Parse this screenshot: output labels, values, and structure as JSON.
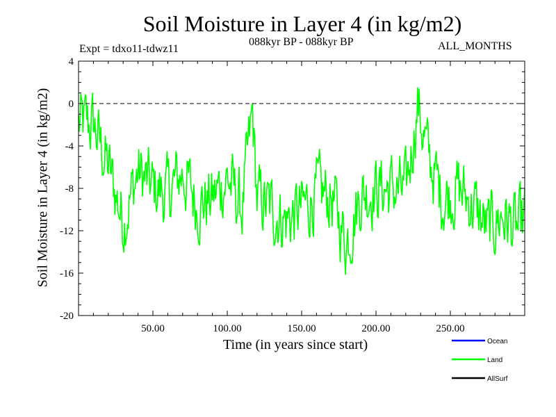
{
  "chart_data": {
    "type": "line",
    "title": "Soil Moisture in Layer 4 (in kg/m2)",
    "subtitle_left": "Expt = tdxo11-tdwz11",
    "subtitle_center": "088kyr BP - 088kyr BP",
    "subtitle_right": "ALL_MONTHS",
    "xlabel": "Time (in years since start)",
    "ylabel": "Soil Moisture in Layer 4 (in kg/m2)",
    "xlim": [
      0,
      300
    ],
    "ylim": [
      -20,
      4
    ],
    "x_ticks": [
      50,
      100,
      150,
      200,
      250
    ],
    "x_tick_labels": [
      "50.00",
      "100.00",
      "150.00",
      "200.00",
      "250.00"
    ],
    "y_ticks": [
      4,
      0,
      -4,
      -8,
      -12,
      -16,
      -20
    ],
    "y_tick_labels": [
      "4",
      "0",
      "-4",
      "-8",
      "-12",
      "-16",
      "-20"
    ],
    "reference_line": {
      "y": 0,
      "style": "dashed"
    },
    "series": [
      {
        "name": "Land",
        "color": "#00ff00",
        "x": [
          0,
          10,
          20,
          30,
          40,
          50,
          60,
          70,
          80,
          90,
          100,
          110,
          117,
          120,
          130,
          140,
          150,
          160,
          170,
          180,
          190,
          200,
          210,
          220,
          228,
          235,
          245,
          255,
          265,
          275,
          285,
          295,
          300
        ],
        "y": [
          -2,
          -2,
          -6,
          -11,
          -6.5,
          -8,
          -8.5,
          -6.5,
          -9.5,
          -9,
          -7,
          -10,
          -1,
          -9,
          -10,
          -11,
          -10,
          -8.5,
          -8.8,
          -13,
          -8.5,
          -8,
          -8,
          -8.5,
          0,
          -5,
          -9,
          -8,
          -9.5,
          -12,
          -10.5,
          -12,
          -11
        ]
      },
      {
        "name": "Ocean",
        "color": "#0000ff",
        "x": [],
        "y": []
      },
      {
        "name": "AllSurf",
        "color": "#000000",
        "x": [],
        "y": []
      }
    ],
    "legend_position": "bottom-right",
    "legend": [
      {
        "label": "Ocean",
        "color": "#0000ff"
      },
      {
        "label": "Land",
        "color": "#00ff00"
      },
      {
        "label": "AllSurf",
        "color": "#000000"
      }
    ]
  }
}
